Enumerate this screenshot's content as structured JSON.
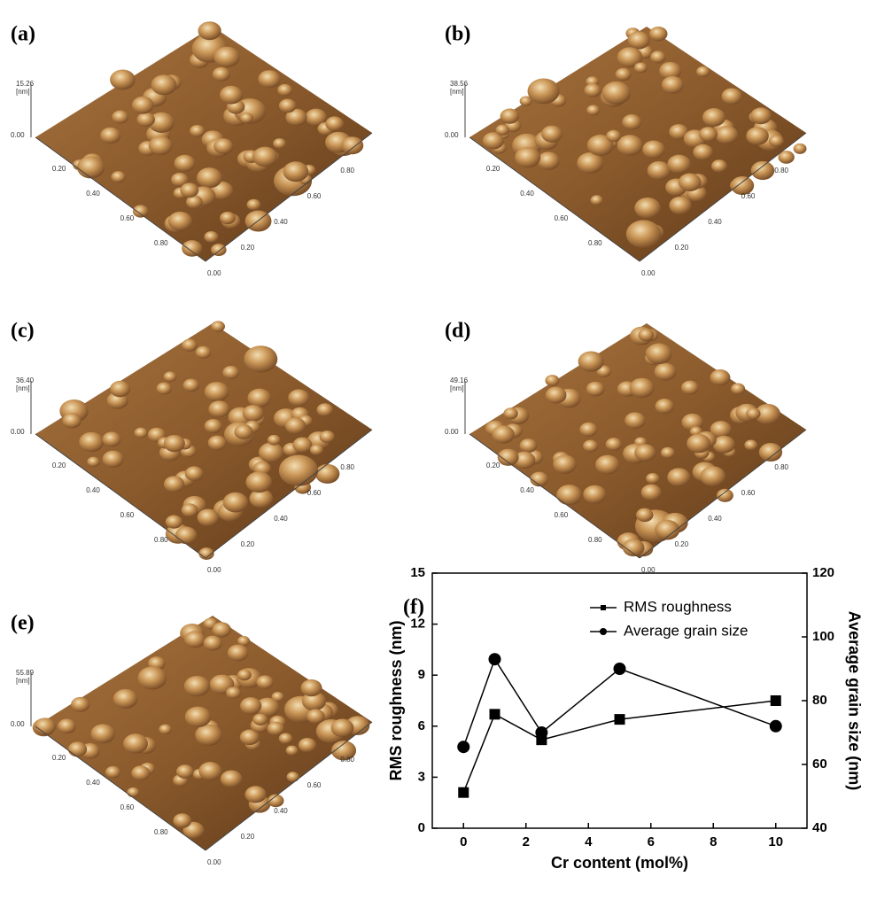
{
  "panels": [
    {
      "label": "(a)",
      "z_label": "15.26",
      "unit": "[nm]",
      "origin": "0.00",
      "left_ticks": [
        "0.20",
        "0.40",
        "0.60",
        "0.80"
      ],
      "right_ticks": [
        "0.00",
        "0.20",
        "0.40",
        "0.60",
        "0.80"
      ]
    },
    {
      "label": "(b)",
      "z_label": "38.56",
      "unit": "[nm]",
      "origin": "0.00",
      "left_ticks": [
        "0.20",
        "0.40",
        "0.60",
        "0.80"
      ],
      "right_ticks": [
        "0.00",
        "0.20",
        "0.40",
        "0.60",
        "0.80"
      ]
    },
    {
      "label": "(c)",
      "z_label": "36.40",
      "unit": "[nm]",
      "origin": "0.00",
      "left_ticks": [
        "0.20",
        "0.40",
        "0.60",
        "0.80"
      ],
      "right_ticks": [
        "0.00",
        "0.20",
        "0.40",
        "0.60",
        "0.80"
      ]
    },
    {
      "label": "(d)",
      "z_label": "49.16",
      "unit": "[nm]",
      "origin": "0.00",
      "left_ticks": [
        "0.20",
        "0.40",
        "0.60",
        "0.80"
      ],
      "right_ticks": [
        "0.00",
        "0.20",
        "0.40",
        "0.60",
        "0.80"
      ]
    },
    {
      "label": "(e)",
      "z_label": "55.89",
      "unit": "[nm]",
      "origin": "0.00",
      "left_ticks": [
        "0.20",
        "0.40",
        "0.60",
        "0.80"
      ],
      "right_ticks": [
        "0.00",
        "0.20",
        "0.40",
        "0.60",
        "0.80"
      ]
    }
  ],
  "chart_data": {
    "type": "line",
    "label": "(f)",
    "x_label": "Cr content (mol%)",
    "y_label": "RMS roughness (nm)",
    "y2_label": "Average grain size (nm)",
    "x": [
      0,
      1,
      2.5,
      5,
      10
    ],
    "series": [
      {
        "name": "RMS roughness",
        "color": "#000000",
        "marker": "square",
        "values": [
          2.1,
          6.7,
          5.2,
          6.4,
          7.5
        ]
      },
      {
        "name": "Average grain size",
        "color": "#000000",
        "marker": "circle",
        "axis": "y2",
        "values": [
          65.5,
          93,
          70,
          90,
          72
        ]
      }
    ],
    "xlim": [
      -1,
      11
    ],
    "xticks": [
      0,
      2,
      4,
      6,
      8,
      10
    ],
    "ylim": [
      0,
      15
    ],
    "yticks": [
      0,
      3,
      6,
      9,
      12,
      15
    ],
    "y2lim": [
      40,
      120
    ],
    "y2ticks": [
      40,
      60,
      80,
      100,
      120
    ],
    "legend": "upper right"
  }
}
